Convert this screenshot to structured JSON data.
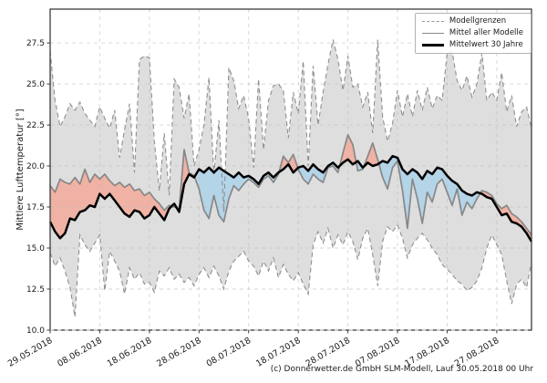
{
  "caption": "(c) Donnerwetter.de GmbH SLM-Modell, Lauf 30.05.2018 00 Uhr",
  "legend": {
    "position": "top-right",
    "items": [
      {
        "label": "Modellgrenzen",
        "style": "dashed-gray"
      },
      {
        "label": "Mittel aller Modelle",
        "style": "solid-gray"
      },
      {
        "label": "Mittelwert 30 Jahre",
        "style": "solid-black-thick"
      }
    ]
  },
  "colors": {
    "envelope_fill": "#dedede",
    "bound_line": "#8f8f8f",
    "above_climate_fill": "#f0b2a4",
    "below_climate_fill": "#b4d4e8",
    "model_mean_line": "#878787",
    "climate_mean_line": "#000000",
    "grid": "#bcbcbc",
    "spine": "#3c3c3c",
    "tick_text": "#1a1a1a"
  },
  "chart_data": {
    "type": "line",
    "title": "",
    "xlabel": "",
    "ylabel": "Mittlere Lufttemperatur [°]",
    "ylim": [
      10,
      29.56
    ],
    "yticks": [
      10.0,
      12.5,
      15.0,
      17.5,
      20.0,
      22.5,
      25.0,
      27.5
    ],
    "xtick_labels": [
      "29.05.2018",
      "08.06.2018",
      "18.06.2018",
      "28.06.2018",
      "08.07.2018",
      "18.07.2018",
      "28.07.2018",
      "07.08.2018",
      "17.08.2018",
      "27.08.2018"
    ],
    "xtick_days": [
      0,
      10,
      20,
      30,
      40,
      50,
      60,
      70,
      80,
      90
    ],
    "grid": true,
    "legend_position": "upper right",
    "series": [
      {
        "name": "Modellgrenzen (obere Grenze)",
        "role": "upper_bound",
        "values": [
          27.0,
          24.0,
          22.4,
          23.0,
          23.8,
          23.4,
          23.9,
          23.2,
          22.8,
          22.4,
          23.6,
          22.9,
          22.3,
          23.4,
          20.5,
          22.2,
          23.8,
          19.6,
          26.5,
          26.7,
          26.6,
          21.5,
          18.5,
          22.0,
          18.2,
          25.3,
          24.8,
          22.9,
          24.4,
          20.0,
          21.0,
          22.5,
          25.4,
          19.5,
          22.8,
          17.2,
          26.0,
          25.2,
          23.5,
          24.3,
          22.9,
          19.9,
          25.3,
          21.0,
          24.0,
          24.9,
          25.0,
          24.6,
          21.7,
          24.5,
          23.2,
          26.4,
          20.0,
          26.1,
          22.5,
          24.5,
          26.2,
          27.7,
          26.5,
          24.6,
          26.7,
          24.8,
          25.0,
          23.6,
          24.5,
          22.0,
          27.7,
          23.0,
          21.5,
          22.6,
          24.6,
          23.0,
          24.4,
          23.0,
          24.6,
          23.4,
          24.8,
          23.5,
          24.3,
          24.0,
          26.9,
          27.0,
          25.2,
          24.6,
          25.5,
          24.2,
          25.0,
          26.9,
          24.0,
          24.5,
          24.0,
          25.7,
          23.3,
          24.3,
          22.4,
          23.3,
          23.6,
          22.3
        ]
      },
      {
        "name": "Modellgrenzen (untere Grenze)",
        "role": "lower_bound",
        "values": [
          14.7,
          13.9,
          14.4,
          13.6,
          12.6,
          10.8,
          15.8,
          15.2,
          14.8,
          15.3,
          15.8,
          12.4,
          14.8,
          14.2,
          13.6,
          12.2,
          13.8,
          13.1,
          13.5,
          12.8,
          12.9,
          12.3,
          13.6,
          13.3,
          13.8,
          13.1,
          13.4,
          12.9,
          13.2,
          12.7,
          13.4,
          13.8,
          13.2,
          13.9,
          13.3,
          12.5,
          13.6,
          14.2,
          14.5,
          14.8,
          14.2,
          13.9,
          13.3,
          14.2,
          13.6,
          14.4,
          13.2,
          14.0,
          13.4,
          13.0,
          13.5,
          12.8,
          12.2,
          15.2,
          16.0,
          15.3,
          16.2,
          15.0,
          15.8,
          15.2,
          16.0,
          15.4,
          14.3,
          15.6,
          16.2,
          14.6,
          12.7,
          15.4,
          16.3,
          16.0,
          16.4,
          15.6,
          14.4,
          15.2,
          15.6,
          15.9,
          15.5,
          15.0,
          14.6,
          14.0,
          13.7,
          13.4,
          13.0,
          12.8,
          12.4,
          12.6,
          13.0,
          13.8,
          15.0,
          15.8,
          15.2,
          14.6,
          13.0,
          11.6,
          12.8,
          13.1,
          12.6,
          14.1
        ]
      },
      {
        "name": "Mittel aller Modelle",
        "role": "model_mean",
        "values": [
          18.8,
          18.4,
          19.2,
          19.0,
          18.9,
          19.3,
          18.9,
          19.8,
          19.0,
          19.5,
          19.2,
          19.5,
          19.1,
          18.8,
          19.0,
          18.7,
          18.9,
          18.5,
          18.6,
          18.2,
          18.4,
          18.0,
          17.7,
          17.3,
          17.6,
          17.5,
          17.4,
          21.0,
          19.6,
          19.4,
          18.6,
          17.3,
          16.8,
          18.2,
          17.0,
          16.6,
          18.0,
          18.8,
          18.5,
          18.9,
          19.2,
          19.0,
          18.7,
          19.2,
          19.4,
          19.0,
          19.5,
          20.6,
          20.2,
          20.7,
          19.8,
          19.2,
          18.9,
          19.5,
          19.2,
          19.0,
          19.9,
          20.0,
          19.6,
          20.8,
          21.9,
          21.3,
          19.7,
          19.8,
          20.6,
          21.4,
          20.4,
          19.3,
          18.6,
          19.9,
          20.3,
          18.5,
          16.2,
          19.2,
          18.0,
          16.5,
          18.4,
          17.8,
          18.9,
          19.2,
          18.4,
          17.6,
          18.6,
          17.0,
          17.8,
          17.4,
          18.0,
          18.5,
          18.4,
          18.2,
          17.7,
          17.4,
          17.6,
          17.1,
          16.9,
          16.6,
          16.2,
          15.8
        ]
      },
      {
        "name": "Mittelwert 30 Jahre",
        "role": "climate_mean",
        "values": [
          16.6,
          16.0,
          15.6,
          15.9,
          16.8,
          16.7,
          17.2,
          17.3,
          17.6,
          17.5,
          18.3,
          18.0,
          18.3,
          17.9,
          17.5,
          17.1,
          16.9,
          17.3,
          17.2,
          16.8,
          17.0,
          17.5,
          17.1,
          16.7,
          17.4,
          17.7,
          17.2,
          18.9,
          19.5,
          19.3,
          19.8,
          19.6,
          19.9,
          19.6,
          19.9,
          19.7,
          19.5,
          19.3,
          19.6,
          19.3,
          19.4,
          19.2,
          18.9,
          19.4,
          19.6,
          19.3,
          19.6,
          19.8,
          20.1,
          19.6,
          19.9,
          20.0,
          19.7,
          20.1,
          19.8,
          19.6,
          20.0,
          20.2,
          19.9,
          20.2,
          20.4,
          20.1,
          20.3,
          19.9,
          20.2,
          20.0,
          20.1,
          20.3,
          20.2,
          20.6,
          20.5,
          19.8,
          19.5,
          19.8,
          19.6,
          19.2,
          19.7,
          19.5,
          19.9,
          19.8,
          19.4,
          19.1,
          18.9,
          18.5,
          18.3,
          18.2,
          18.4,
          18.3,
          18.1,
          18.0,
          17.5,
          17.0,
          17.1,
          16.6,
          16.5,
          16.3,
          15.9,
          15.4
        ]
      }
    ]
  }
}
